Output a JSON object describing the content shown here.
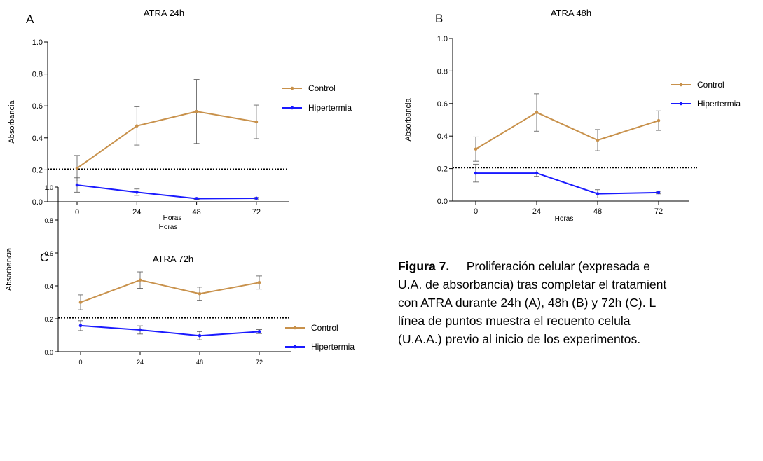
{
  "chart_data": [
    {
      "panel": "A",
      "type": "line",
      "title": "ATRA 24h",
      "xlabel": "Horas",
      "ylabel": "Absorbancia",
      "x": [
        0,
        24,
        48,
        72
      ],
      "x_ticks": [
        "0",
        "24",
        "48",
        "72"
      ],
      "y_ticks": [
        "0.0",
        "0.2",
        "0.4",
        "0.6",
        "0.8",
        "1.0"
      ],
      "ylim": [
        0,
        1.0
      ],
      "reference_line": 0.205,
      "legend_position": "right",
      "series": [
        {
          "name": "Control",
          "color": "#c8914b",
          "values": [
            0.21,
            0.475,
            0.565,
            0.5
          ],
          "err": [
            0.08,
            0.12,
            0.2,
            0.105
          ]
        },
        {
          "name": "Hipertermia",
          "color": "#1a1aff",
          "values": [
            0.105,
            0.06,
            0.02,
            0.022
          ],
          "err": [
            0.045,
            0.02,
            0.005,
            0.005
          ]
        }
      ]
    },
    {
      "panel": "B",
      "type": "line",
      "title": "ATRA 48h",
      "xlabel": "Horas",
      "ylabel": "Absorbancia",
      "x": [
        0,
        24,
        48,
        72
      ],
      "x_ticks": [
        "0",
        "24",
        "48",
        "72"
      ],
      "y_ticks": [
        "0.0",
        "0.2",
        "0.4",
        "0.6",
        "0.8",
        "1.0"
      ],
      "ylim": [
        0,
        1.0
      ],
      "reference_line": 0.205,
      "legend_position": "right",
      "series": [
        {
          "name": "Control",
          "color": "#c8914b",
          "values": [
            0.32,
            0.545,
            0.375,
            0.495
          ],
          "err": [
            0.075,
            0.115,
            0.065,
            0.06
          ]
        },
        {
          "name": "Hipertermia",
          "color": "#1a1aff",
          "values": [
            0.172,
            0.172,
            0.045,
            0.052
          ],
          "err": [
            0.055,
            0.02,
            0.025,
            0.008
          ]
        }
      ]
    },
    {
      "panel": "C",
      "type": "line",
      "title": "ATRA 72h",
      "xlabel": "Horas",
      "ylabel": "Absorbancia",
      "x": [
        0,
        24,
        48,
        72
      ],
      "x_ticks": [
        "0",
        "24",
        "48",
        "72"
      ],
      "y_ticks": [
        "0.0",
        "0.2",
        "0.4",
        "0.6",
        "0.8",
        "1.0"
      ],
      "ylim": [
        0,
        1.0
      ],
      "reference_line": 0.205,
      "legend_position": "right",
      "series": [
        {
          "name": "Control",
          "color": "#c8914b",
          "values": [
            0.3,
            0.435,
            0.352,
            0.42
          ],
          "err": [
            0.045,
            0.05,
            0.04,
            0.04
          ]
        },
        {
          "name": "Hipertermia",
          "color": "#1a1aff",
          "values": [
            0.158,
            0.132,
            0.097,
            0.122
          ],
          "err": [
            0.03,
            0.025,
            0.025,
            0.012
          ]
        }
      ]
    }
  ],
  "caption": {
    "figure_label": "Figura 7.",
    "line1_rest": "Proliferación celular (expresada e",
    "line2": "U.A. de absorbancia) tras completar el tratamient",
    "line3": "con ATRA durante 24h (A), 48h (B) y 72h (C). L",
    "line4": "línea de puntos muestra el recuento celula",
    "line5": "(U.A.A.) previo al inicio de los experimentos."
  }
}
